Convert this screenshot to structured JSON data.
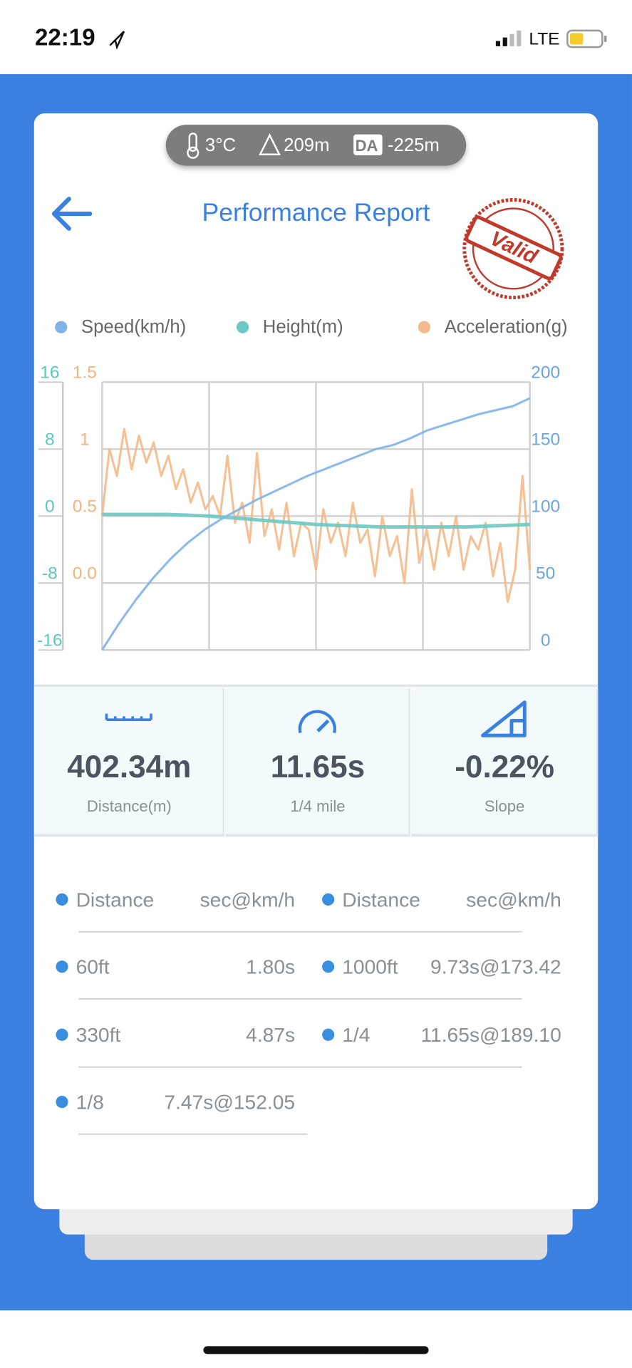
{
  "status_bar": {
    "time": "22:19",
    "network": "LTE"
  },
  "conditions": {
    "temperature": "3°C",
    "altitude": "209m",
    "da_label": "DA",
    "density_altitude": "-225m"
  },
  "header": {
    "title": "Performance Report",
    "stamp": "Valid"
  },
  "chart_data": {
    "type": "line",
    "series": [
      {
        "name": "Speed(km/h)",
        "color": "#7fb2e8",
        "axis": "y2",
        "values": [
          0,
          20,
          38,
          54,
          68,
          80,
          90,
          98,
          105,
          112,
          118,
          124,
          130,
          135,
          140,
          145,
          150,
          153,
          158,
          164,
          168,
          172,
          176,
          179,
          182,
          188
        ]
      },
      {
        "name": "Height(m)",
        "color": "#6cc9c3",
        "axis": "y",
        "values": [
          0.2,
          0.2,
          0.2,
          0.2,
          0.1,
          0,
          -0.2,
          -0.4,
          -0.6,
          -0.8,
          -1,
          -1.1,
          -1.2,
          -1.3,
          -1.3,
          -1.3,
          -1.3,
          -1.3,
          -1.2,
          -1.1,
          -1
        ]
      },
      {
        "name": "Acceleration(g)",
        "color": "#f5b98a",
        "axis": "y3",
        "values": [
          0.5,
          1.0,
          0.8,
          1.15,
          0.85,
          1.1,
          0.9,
          1.05,
          0.8,
          0.95,
          0.7,
          0.85,
          0.6,
          0.75,
          0.55,
          0.65,
          0.5,
          0.95,
          0.45,
          0.6,
          0.3,
          0.97,
          0.35,
          0.55,
          0.25,
          0.6,
          0.2,
          0.45,
          0.4,
          0.1,
          0.55,
          0.3,
          0.45,
          0.2,
          0.6,
          0.3,
          0.4,
          0.05,
          0.5,
          0.2,
          0.35,
          0.0,
          0.7,
          0.15,
          0.4,
          0.1,
          0.45,
          0.2,
          0.5,
          0.1,
          0.35,
          0.25,
          0.45,
          0.05,
          0.3,
          -0.14,
          0.1,
          0.8,
          0.1
        ]
      }
    ],
    "ylim": [
      -16,
      16
    ],
    "yticks": [
      16,
      8,
      0,
      -8,
      -16
    ],
    "ycolor": "#5bc7c0",
    "y3lim": [
      -0.5,
      1.5
    ],
    "y3ticks": [
      1.5,
      1,
      0.5,
      {
        "value": 0,
        "label": "0.0"
      }
    ],
    "y3color": "#f4b27f",
    "y2lim": [
      0,
      200
    ],
    "y2ticks": [
      200,
      150,
      100,
      50,
      0
    ],
    "y2color": "#6aa6e3",
    "grid": true
  },
  "stats": [
    {
      "value": "402.34m",
      "label": "Distance(m)"
    },
    {
      "value": "11.65s",
      "label": "1/4 mile"
    },
    {
      "value": "-0.22%",
      "label": "Slope"
    }
  ],
  "table": {
    "header": [
      "Distance",
      "sec@km/h",
      "Distance",
      "sec@km/h"
    ],
    "rows": [
      [
        "60ft",
        "1.80s",
        "1000ft",
        "9.73s@173.42"
      ],
      [
        "330ft",
        "4.87s",
        "1/4",
        "11.65s@189.10"
      ],
      [
        "1/8",
        "7.47s@152.05"
      ]
    ]
  }
}
